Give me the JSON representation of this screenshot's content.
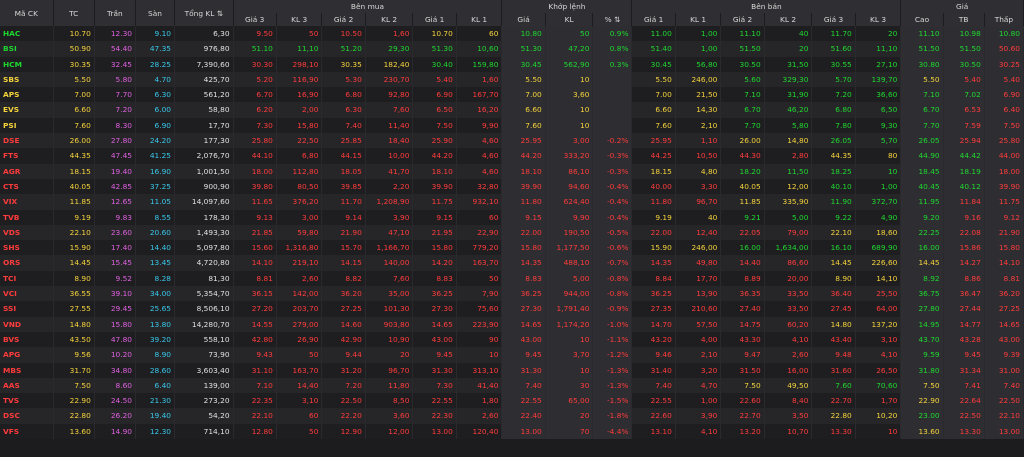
{
  "header": {
    "group_bid": "Bên mua",
    "group_match": "Khớp lệnh",
    "group_ask": "Bên bán",
    "group_price": "Giá",
    "cols": {
      "symbol": "Mã CK",
      "ref": "TC",
      "ceil": "Trần",
      "floor": "Sàn",
      "total_vol": "Tổng KL",
      "bid_p3": "Giá 3",
      "bid_v3": "KL 3",
      "bid_p2": "Giá 2",
      "bid_v2": "KL 2",
      "bid_p1": "Giá 1",
      "bid_v1": "KL 1",
      "match_price": "Giá",
      "match_vol": "KL",
      "match_pct": "%",
      "ask_p1": "Giá 1",
      "ask_v1": "KL 1",
      "ask_p2": "Giá 2",
      "ask_v2": "KL 2",
      "ask_p3": "Giá 3",
      "ask_v3": "KL 3",
      "high": "Cao",
      "avg": "TB",
      "low": "Thấp"
    }
  },
  "rows": [
    [
      "HAC",
      "10.70",
      "12.30",
      "9.10",
      "6,30",
      "9.50",
      "50",
      "10.50",
      "1,60",
      "10.70",
      "60",
      "10.80",
      "50",
      "0.9%",
      "11.00",
      "1,00",
      "11.10",
      "40",
      "11.70",
      "20",
      "11.10",
      "10.98",
      "10.80"
    ],
    [
      "BSI",
      "50.90",
      "54.40",
      "47.35",
      "976,80",
      "51.10",
      "11,10",
      "51.20",
      "29,30",
      "51.30",
      "10,60",
      "51.30",
      "47,20",
      "0.8%",
      "51.40",
      "1,00",
      "51.50",
      "20",
      "51.60",
      "11,10",
      "51.50",
      "51.50",
      "50.60"
    ],
    [
      "HCM",
      "30.35",
      "32.45",
      "28.25",
      "7,390,60",
      "30.30",
      "298,10",
      "30.35",
      "182,40",
      "30.40",
      "159,80",
      "30.45",
      "562,90",
      "0.3%",
      "30.45",
      "56,80",
      "30.50",
      "31,50",
      "30.55",
      "27,10",
      "30.80",
      "30.50",
      "30.25"
    ],
    [
      "SBS",
      "5.50",
      "5.80",
      "4.70",
      "425,70",
      "5.20",
      "116,90",
      "5.30",
      "230,70",
      "5.40",
      "1,60",
      "5.50",
      "10",
      "",
      "5.50",
      "246,00",
      "5.60",
      "329,30",
      "5.70",
      "139,70",
      "5.50",
      "5.40",
      "5.40"
    ],
    [
      "APS",
      "7.00",
      "7.70",
      "6.30",
      "561,20",
      "6.70",
      "16,90",
      "6.80",
      "92,80",
      "6.90",
      "167,70",
      "7.00",
      "3,60",
      "",
      "7.00",
      "21,50",
      "7.10",
      "31,90",
      "7.20",
      "36,60",
      "7.10",
      "7.02",
      "6.90"
    ],
    [
      "EVS",
      "6.60",
      "7.20",
      "6.00",
      "58,80",
      "6.20",
      "2,00",
      "6.30",
      "7,60",
      "6.50",
      "16,20",
      "6.60",
      "10",
      "",
      "6.60",
      "14,30",
      "6.70",
      "46,20",
      "6.80",
      "6,50",
      "6.70",
      "6.53",
      "6.40"
    ],
    [
      "PSI",
      "7.60",
      "8.30",
      "6.90",
      "17,70",
      "7.30",
      "15,80",
      "7.40",
      "11,40",
      "7.50",
      "9,90",
      "7.60",
      "10",
      "",
      "7.60",
      "2,10",
      "7.70",
      "5,80",
      "7.80",
      "9,30",
      "7.70",
      "7.59",
      "7.50"
    ],
    [
      "DSE",
      "26.00",
      "27.80",
      "24.20",
      "177,30",
      "25.80",
      "22,50",
      "25.85",
      "18,40",
      "25.90",
      "4,60",
      "25.95",
      "3,00",
      "-0.2%",
      "25.95",
      "1,10",
      "26.00",
      "14,80",
      "26.05",
      "5,70",
      "26.05",
      "25.94",
      "25.80"
    ],
    [
      "FTS",
      "44.35",
      "47.45",
      "41.25",
      "2,076,70",
      "44.10",
      "6,80",
      "44.15",
      "10,00",
      "44.20",
      "4,60",
      "44.20",
      "333,20",
      "-0.3%",
      "44.25",
      "10,50",
      "44.30",
      "2,80",
      "44.35",
      "80",
      "44.90",
      "44.42",
      "44.00"
    ],
    [
      "AGR",
      "18.15",
      "19.40",
      "16.90",
      "1,001,50",
      "18.00",
      "112,80",
      "18.05",
      "41,70",
      "18.10",
      "4,60",
      "18.10",
      "86,10",
      "-0.3%",
      "18.15",
      "4,80",
      "18.20",
      "11,50",
      "18.25",
      "10",
      "18.45",
      "18.19",
      "18.00"
    ],
    [
      "CTS",
      "40.05",
      "42.85",
      "37.25",
      "900,90",
      "39.80",
      "80,50",
      "39.85",
      "2,20",
      "39.90",
      "32,80",
      "39.90",
      "94,60",
      "-0.4%",
      "40.00",
      "3,30",
      "40.05",
      "12,00",
      "40.10",
      "1,00",
      "40.45",
      "40.12",
      "39.90"
    ],
    [
      "VIX",
      "11.85",
      "12.65",
      "11.05",
      "14,097,60",
      "11.65",
      "376,20",
      "11.70",
      "1,208,90",
      "11.75",
      "932,10",
      "11.80",
      "624,40",
      "-0.4%",
      "11.80",
      "96,70",
      "11.85",
      "335,90",
      "11.90",
      "372,70",
      "11.95",
      "11.84",
      "11.75"
    ],
    [
      "TVB",
      "9.19",
      "9.83",
      "8.55",
      "178,30",
      "9.13",
      "3,00",
      "9.14",
      "3,90",
      "9.15",
      "60",
      "9.15",
      "9,90",
      "-0.4%",
      "9.19",
      "40",
      "9.21",
      "5,00",
      "9.22",
      "4,90",
      "9.20",
      "9.16",
      "9.12"
    ],
    [
      "VDS",
      "22.10",
      "23.60",
      "20.60",
      "1,493,30",
      "21.85",
      "59,80",
      "21.90",
      "47,10",
      "21.95",
      "22,90",
      "22.00",
      "190,50",
      "-0.5%",
      "22.00",
      "12,40",
      "22.05",
      "79,00",
      "22.10",
      "18,60",
      "22.25",
      "22.08",
      "21.90"
    ],
    [
      "SHS",
      "15.90",
      "17.40",
      "14.40",
      "5,097,80",
      "15.60",
      "1,316,80",
      "15.70",
      "1,166,70",
      "15.80",
      "779,20",
      "15.80",
      "1,177,50",
      "-0.6%",
      "15.90",
      "246,00",
      "16.00",
      "1,634,00",
      "16.10",
      "689,90",
      "16.00",
      "15.86",
      "15.80"
    ],
    [
      "ORS",
      "14.45",
      "15.45",
      "13.45",
      "4,720,80",
      "14.10",
      "219,10",
      "14.15",
      "140,00",
      "14.20",
      "163,70",
      "14.35",
      "488,10",
      "-0.7%",
      "14.35",
      "49,80",
      "14.40",
      "86,60",
      "14.45",
      "226,60",
      "14.45",
      "14.27",
      "14.10"
    ],
    [
      "TCI",
      "8.90",
      "9.52",
      "8.28",
      "81,30",
      "8.81",
      "2,60",
      "8.82",
      "7,60",
      "8.83",
      "50",
      "8.83",
      "5,00",
      "-0.8%",
      "8.84",
      "17,70",
      "8.89",
      "20,00",
      "8.90",
      "14,10",
      "8.92",
      "8.86",
      "8.81"
    ],
    [
      "VCI",
      "36.55",
      "39.10",
      "34.00",
      "5,354,70",
      "36.15",
      "142,00",
      "36.20",
      "35,00",
      "36.25",
      "7,90",
      "36.25",
      "944,00",
      "-0.8%",
      "36.25",
      "13,90",
      "36.35",
      "33,50",
      "36.40",
      "25,50",
      "36.75",
      "36.47",
      "36.20"
    ],
    [
      "SSI",
      "27.55",
      "29.45",
      "25.65",
      "8,506,10",
      "27.20",
      "203,70",
      "27.25",
      "101,30",
      "27.30",
      "75,60",
      "27.30",
      "1,791,40",
      "-0.9%",
      "27.35",
      "210,60",
      "27.40",
      "33,50",
      "27.45",
      "64,00",
      "27.80",
      "27.44",
      "27.25"
    ],
    [
      "VND",
      "14.80",
      "15.80",
      "13.80",
      "14,280,70",
      "14.55",
      "279,00",
      "14.60",
      "903,80",
      "14.65",
      "223,90",
      "14.65",
      "1,174,20",
      "-1.0%",
      "14.70",
      "57,50",
      "14.75",
      "60,20",
      "14.80",
      "137,20",
      "14.95",
      "14.77",
      "14.65"
    ],
    [
      "BVS",
      "43.50",
      "47.80",
      "39.20",
      "558,10",
      "42.80",
      "26,90",
      "42.90",
      "10,90",
      "43.00",
      "90",
      "43.00",
      "10",
      "-1.1%",
      "43.20",
      "4,00",
      "43.30",
      "4,10",
      "43.40",
      "3,10",
      "43.70",
      "43.28",
      "43.00"
    ],
    [
      "APG",
      "9.56",
      "10.20",
      "8.90",
      "73,90",
      "9.43",
      "50",
      "9.44",
      "20",
      "9.45",
      "10",
      "9.45",
      "3,70",
      "-1.2%",
      "9.46",
      "2,10",
      "9.47",
      "2,60",
      "9.48",
      "4,10",
      "9.59",
      "9.45",
      "9.39"
    ],
    [
      "MBS",
      "31.70",
      "34.80",
      "28.60",
      "3,603,40",
      "31.10",
      "163,70",
      "31.20",
      "96,70",
      "31.30",
      "313,10",
      "31.30",
      "10",
      "-1.3%",
      "31.40",
      "3,20",
      "31.50",
      "16,00",
      "31.60",
      "26,50",
      "31.80",
      "31.34",
      "31.00"
    ],
    [
      "AAS",
      "7.50",
      "8.60",
      "6.40",
      "139,00",
      "7.10",
      "14,40",
      "7.20",
      "11,80",
      "7.30",
      "41,40",
      "7.40",
      "30",
      "-1.3%",
      "7.40",
      "4,70",
      "7.50",
      "49,50",
      "7.60",
      "70,60",
      "7.50",
      "7.41",
      "7.40"
    ],
    [
      "TVS",
      "22.90",
      "24.50",
      "21.30",
      "273,20",
      "22.35",
      "3,10",
      "22.50",
      "8,50",
      "22.55",
      "1,80",
      "22.55",
      "65,00",
      "-1.5%",
      "22.55",
      "1,00",
      "22.60",
      "8,40",
      "22.70",
      "1,70",
      "22.90",
      "22.64",
      "22.50"
    ],
    [
      "DSC",
      "22.80",
      "26.20",
      "19.40",
      "54,20",
      "22.10",
      "60",
      "22.20",
      "3,60",
      "22.30",
      "2,60",
      "22.40",
      "20",
      "-1.8%",
      "22.60",
      "3,90",
      "22.70",
      "3,50",
      "22.80",
      "10,20",
      "23.00",
      "22.50",
      "22.10"
    ],
    [
      "VFS",
      "13.60",
      "14.90",
      "12.30",
      "714,10",
      "12.80",
      "50",
      "12.90",
      "12,00",
      "13.00",
      "120,40",
      "13.00",
      "70",
      "-4.4%",
      "13.10",
      "4,10",
      "13.20",
      "10,70",
      "13.30",
      "10",
      "13.60",
      "13.30",
      "13.00"
    ]
  ],
  "colors": {
    "ceiling": "#e060e0",
    "floor": "#38c7e9",
    "ref": "#f5d33b",
    "up": "#1fd82f",
    "down": "#ff3b3b",
    "text": "#e0e0e0"
  }
}
